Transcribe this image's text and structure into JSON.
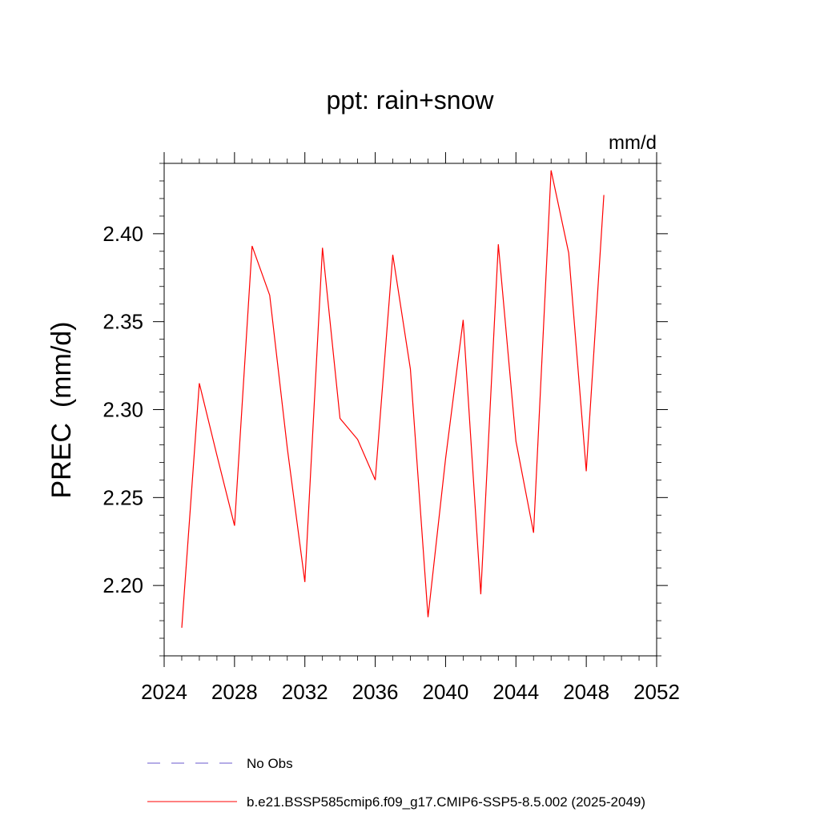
{
  "chart_data": {
    "type": "line",
    "title": "ppt: rain+snow",
    "units": "mm/d",
    "ylabel": "PREC  (mm/d)",
    "xlabel": "",
    "xlim": [
      2024,
      2052
    ],
    "ylim": [
      2.16,
      2.44
    ],
    "x_ticks": [
      2024,
      2028,
      2032,
      2036,
      2040,
      2044,
      2048,
      2052
    ],
    "x_tick_labels": [
      "2024",
      "2028",
      "2032",
      "2036",
      "2040",
      "2044",
      "2048",
      "2052"
    ],
    "y_ticks": [
      2.2,
      2.25,
      2.3,
      2.35,
      2.4
    ],
    "y_tick_labels": [
      "2.20",
      "2.25",
      "2.30",
      "2.35",
      "2.40"
    ],
    "series": [
      {
        "name": "b.e21.BSSP585cmip6.f09_g17.CMIP6-SSP5-8.5.002 (2025-2049)",
        "color": "#ff0000",
        "x": [
          2025,
          2026,
          2027,
          2028,
          2029,
          2030,
          2031,
          2032,
          2033,
          2034,
          2035,
          2036,
          2037,
          2038,
          2039,
          2040,
          2041,
          2042,
          2043,
          2044,
          2045,
          2046,
          2047,
          2048,
          2049
        ],
        "values": [
          2.176,
          2.315,
          2.274,
          2.234,
          2.393,
          2.365,
          2.278,
          2.202,
          2.392,
          2.295,
          2.283,
          2.26,
          2.388,
          2.323,
          2.182,
          2.272,
          2.351,
          2.195,
          2.394,
          2.282,
          2.23,
          2.436,
          2.389,
          2.265,
          2.422
        ]
      }
    ],
    "legend": [
      {
        "label": "No Obs",
        "style": "dashed",
        "color": "#6a5acd"
      },
      {
        "label": "b.e21.BSSP585cmip6.f09_g17.CMIP6-SSP5-8.5.002 (2025-2049)",
        "style": "solid",
        "color": "#ff0000"
      }
    ],
    "grid": false,
    "legend_position": "bottom"
  }
}
